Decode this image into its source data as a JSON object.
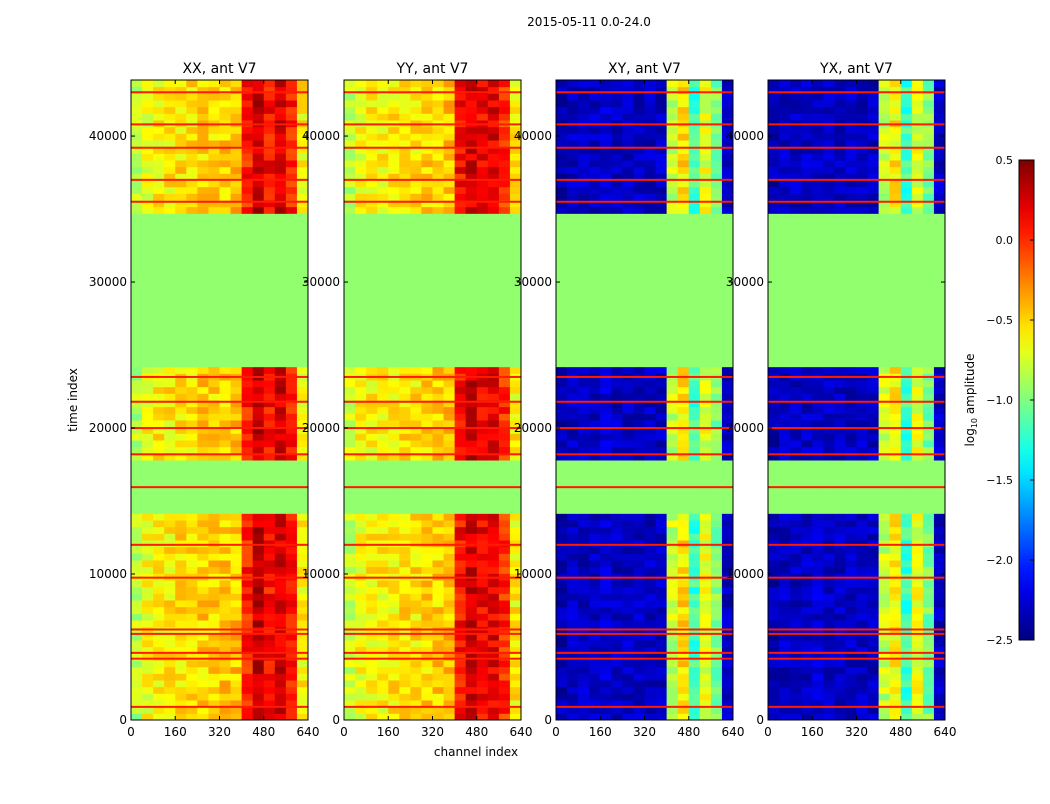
{
  "chart_data": {
    "type": "heatmap",
    "suptitle": "2015-05-11 0.0-24.0",
    "xlabel": "channel index",
    "ylabel": "time index",
    "xlim": [
      0,
      640
    ],
    "ylim": [
      0,
      43840
    ],
    "xticks": [
      "0",
      "160",
      "320",
      "480",
      "640"
    ],
    "xtick_values": [
      0,
      160,
      320,
      480,
      640
    ],
    "yticks": [
      "0",
      "10000",
      "20000",
      "30000",
      "40000"
    ],
    "ytick_values": [
      0,
      10000,
      20000,
      30000,
      40000
    ],
    "colorbar": {
      "label": "log10 amplitude",
      "label_main": "log",
      "label_sub": "10",
      "label_rest": " amplitude",
      "range": [
        -2.5,
        0.5
      ],
      "ticks": [
        "0.5",
        "0.0",
        "−0.5",
        "−1.0",
        "−1.5",
        "−2.0",
        "−2.5"
      ],
      "tick_values": [
        0.5,
        0.0,
        -0.5,
        -1.0,
        -1.5,
        -2.0,
        -2.5
      ],
      "colormap": "jet"
    },
    "flagged_value": -0.95,
    "flagged_ranges": [
      [
        24000,
        34600
      ],
      [
        14100,
        17700
      ]
    ],
    "line_value": 0.05,
    "line_times": [
      43000,
      40800,
      39200,
      37000,
      35500,
      23500,
      21800,
      20000,
      18200,
      15950,
      12000,
      9750,
      6200,
      5900,
      4600,
      4200,
      900
    ],
    "channel_bin_width": 40,
    "panels": [
      {
        "title": "XX, ant V7",
        "profile": [
          -0.85,
          -0.65,
          -0.6,
          -0.58,
          -0.55,
          -0.55,
          -0.5,
          -0.5,
          -0.48,
          -0.45,
          0.05,
          0.3,
          0.1,
          0.25,
          0.05,
          -0.6
        ]
      },
      {
        "title": "YY, ant V7",
        "profile": [
          -0.8,
          -0.65,
          -0.6,
          -0.6,
          -0.58,
          -0.55,
          -0.55,
          -0.5,
          -0.5,
          -0.45,
          0.1,
          0.25,
          0.15,
          0.2,
          0.0,
          -0.6
        ]
      },
      {
        "title": "XY, ant V7",
        "profile": [
          -2.35,
          -2.3,
          -2.3,
          -2.3,
          -2.25,
          -2.3,
          -2.3,
          -2.3,
          -2.3,
          -2.3,
          -0.8,
          -0.55,
          -1.2,
          -0.7,
          -1.0,
          -2.3
        ]
      },
      {
        "title": "YX, ant V7",
        "profile": [
          -2.35,
          -2.3,
          -2.3,
          -2.3,
          -2.25,
          -2.3,
          -2.3,
          -2.3,
          -2.3,
          -2.3,
          -0.8,
          -0.6,
          -1.2,
          -0.7,
          -1.0,
          -2.3
        ]
      }
    ]
  }
}
